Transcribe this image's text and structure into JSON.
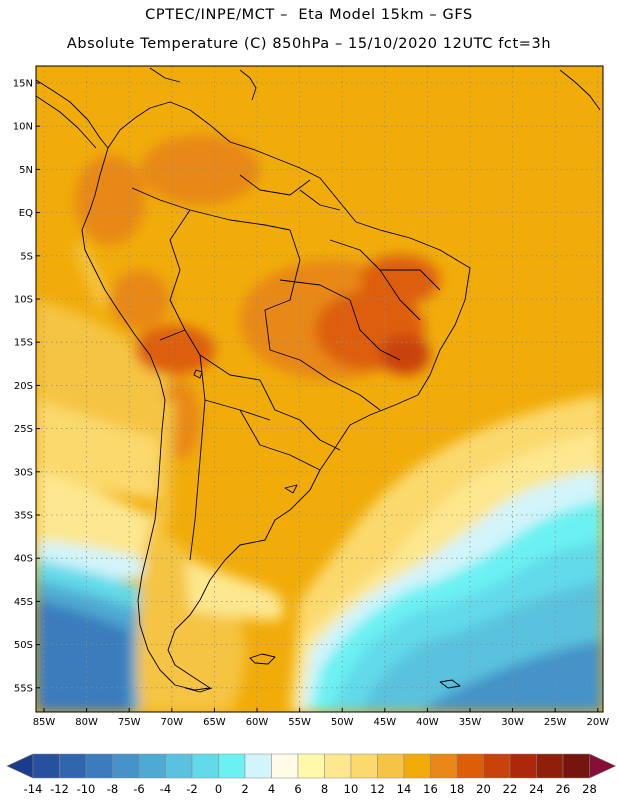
{
  "header": {
    "line1": "CPTEC/INPE/MCT –  Eta Model 15km – GFS",
    "line2": "Absolute Temperature (C) 850hPa – 15/10/2020 12UTC fct=3h"
  },
  "map": {
    "lat_labels": [
      "15N",
      "10N",
      "5N",
      "EQ",
      "5S",
      "10S",
      "15S",
      "20S",
      "25S",
      "30S",
      "35S",
      "40S",
      "45S",
      "50S",
      "55S"
    ],
    "lon_labels": [
      "85W",
      "80W",
      "75W",
      "70W",
      "65W",
      "60W",
      "55W",
      "50W",
      "45W",
      "40W",
      "35W",
      "30W",
      "25W",
      "20W"
    ],
    "grid": true
  },
  "colorbar": {
    "levels": [
      "-14",
      "-12",
      "-10",
      "-8",
      "-6",
      "-4",
      "-2",
      "0",
      "2",
      "4",
      "6",
      "8",
      "10",
      "12",
      "14",
      "16",
      "18",
      "20",
      "22",
      "24",
      "26",
      "28"
    ],
    "colors": [
      "#1b3c8c",
      "#26519e",
      "#2f66ae",
      "#3a7cbd",
      "#4593c8",
      "#4faad3",
      "#5ac2de",
      "#62dae9",
      "#6cf1f3",
      "#d2f4fb",
      "#fffbe6",
      "#fff9a9",
      "#fde78f",
      "#fbd96d",
      "#f5c443",
      "#f1ac0a",
      "#e88816",
      "#dd5e07",
      "#c9420b",
      "#ad2708",
      "#8e1f0a",
      "#75150e",
      "#880e38"
    ]
  }
}
